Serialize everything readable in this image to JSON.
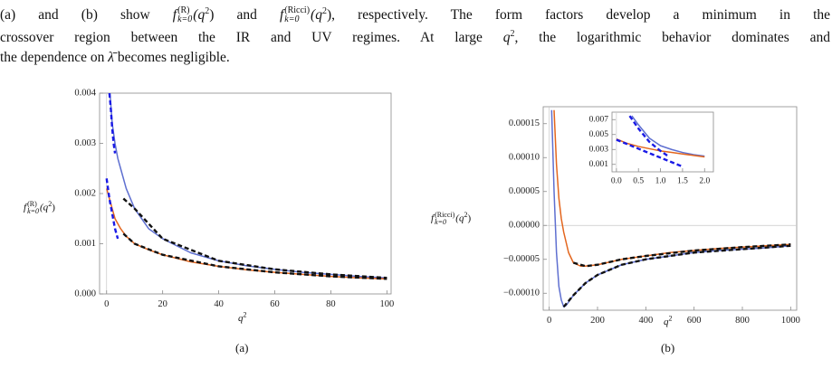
{
  "paragraph": {
    "line1": [
      "(a) and (b) show ",
      "f",
      "(R)",
      "k=0",
      "(q",
      "2",
      ") and ",
      "f",
      "(Ricci)",
      "k=0",
      "(q",
      "2",
      "), respectively. The form factors develop a minimum in the"
    ],
    "line2": [
      "crossover region between the IR and UV regimes. At large ",
      "q",
      "2",
      ", the logarithmic behavior dominates and"
    ],
    "line3": [
      "the dependence on ",
      "λ̄",
      " becomes negligible."
    ]
  },
  "chart_data": [
    {
      "type": "line",
      "caption": "(a)",
      "xlabel": {
        "base": "q",
        "sup": "2"
      },
      "ylabel": {
        "base": "f",
        "sup": "(R)",
        "sub": "k=0",
        "arg": "(q",
        "argsup": "2",
        "close": ")"
      },
      "xlim": [
        -2.5,
        101.5
      ],
      "ylim": [
        0,
        0.004
      ],
      "xticks": [
        0,
        20,
        40,
        60,
        80,
        100
      ],
      "yticks": [
        {
          "value": 0,
          "label": "0.000"
        },
        0.001,
        0.002,
        0.003,
        0.004
      ],
      "series": [
        {
          "color": "#5e6fd0",
          "dashed": false,
          "x": [
            1.2,
            2,
            3,
            4,
            5,
            7,
            10,
            15,
            20,
            30,
            40,
            50,
            60,
            70,
            80,
            90,
            100
          ],
          "values": [
            0.004,
            0.0034,
            0.003,
            0.0027,
            0.0025,
            0.0021,
            0.0017,
            0.0013,
            0.0011,
            0.00082,
            0.00066,
            0.00056,
            0.00049,
            0.00043,
            0.00039,
            0.00035,
            0.00032
          ]
        },
        {
          "color": "#e3661e",
          "dashed": false,
          "x": [
            0,
            1,
            2,
            3,
            5,
            7,
            10,
            15,
            20,
            30,
            40,
            50,
            60,
            70,
            80,
            90,
            100
          ],
          "values": [
            0.0021,
            0.0019,
            0.0017,
            0.0015,
            0.0013,
            0.00115,
            0.001,
            0.00088,
            0.00078,
            0.00064,
            0.00055,
            0.00048,
            0.00043,
            0.00039,
            0.00035,
            0.00032,
            0.0003
          ]
        },
        {
          "color": "#1a1ae6",
          "dashed": true,
          "x": [
            1,
            1.5,
            2,
            2.5,
            3,
            3.5,
            0,
            1,
            2,
            3,
            4
          ],
          "values": [
            0.004,
            0.0037,
            0.0033,
            0.003,
            0.0028,
            null,
            0.0023,
            0.0019,
            0.0016,
            0.0013,
            0.0011
          ]
        },
        {
          "color": "#111111",
          "dashed": true,
          "x": [
            6,
            10,
            20,
            40,
            60,
            80,
            100,
            100,
            6,
            10,
            20,
            40,
            60,
            80,
            100
          ],
          "values": [
            0.0019,
            0.0017,
            0.0011,
            0.00066,
            0.00049,
            0.00039,
            0.00032,
            null,
            0.0012,
            0.001,
            0.00078,
            0.00055,
            0.00043,
            0.00035,
            0.0003
          ]
        }
      ]
    },
    {
      "type": "line",
      "caption": "(b)",
      "xlabel": {
        "base": "q",
        "sup": "2"
      },
      "ylabel": {
        "base": "f",
        "sup": "(Ricci)",
        "sub": "k=0",
        "arg": "(q",
        "argsup": "2",
        "close": ")"
      },
      "xlim": [
        -25,
        1025
      ],
      "ylim": [
        -0.000125,
        0.000175
      ],
      "xticks": [
        0,
        200,
        400,
        600,
        800,
        1000
      ],
      "yticks": [
        {
          "value": -0.0001,
          "label": "−0.00010"
        },
        {
          "value": -5e-05,
          "label": "−0.00005"
        },
        {
          "value": 0,
          "label": "0.00000"
        },
        {
          "value": 5e-05,
          "label": "0.00005"
        },
        {
          "value": 0.0001,
          "label": "0.00010"
        },
        0.00015
      ],
      "series": [
        {
          "color": "#5e6fd0",
          "dashed": false,
          "x": [
            10,
            20,
            30,
            40,
            50,
            60,
            70,
            80,
            100,
            150,
            200,
            300,
            400,
            500,
            600,
            700,
            800,
            900,
            1000
          ],
          "values": [
            0.00017,
            5e-05,
            -4e-05,
            -9e-05,
            -0.00011,
            -0.00012,
            -0.000118,
            -0.000113,
            -0.000103,
            -8.5e-05,
            -7.3e-05,
            -5.8e-05,
            -5e-05,
            -4.5e-05,
            -4e-05,
            -3.7e-05,
            -3.5e-05,
            -3.3e-05,
            -3e-05
          ]
        },
        {
          "color": "#e3661e",
          "dashed": false,
          "x": [
            20,
            30,
            40,
            50,
            60,
            80,
            100,
            130,
            150,
            200,
            300,
            400,
            500,
            600,
            700,
            800,
            900,
            1000
          ],
          "values": [
            0.00017,
            9e-05,
            4e-05,
            1e-05,
            -1e-05,
            -4e-05,
            -5.5e-05,
            -6e-05,
            -6e-05,
            -5.8e-05,
            -5e-05,
            -4.5e-05,
            -4e-05,
            -3.7e-05,
            -3.4e-05,
            -3.2e-05,
            -3e-05,
            -2.8e-05
          ]
        },
        {
          "color": "#111111",
          "dashed": true,
          "x": [
            60,
            100,
            150,
            200,
            300,
            400,
            600,
            800,
            1000,
            1000,
            100,
            150,
            200,
            300,
            400,
            600,
            800,
            1000
          ],
          "values": [
            -0.00012,
            -0.000103,
            -8.5e-05,
            -7.3e-05,
            -5.8e-05,
            -5e-05,
            -4e-05,
            -3.5e-05,
            -3e-05,
            null,
            -5.5e-05,
            -6e-05,
            -5.8e-05,
            -5e-05,
            -4.5e-05,
            -3.7e-05,
            -3.2e-05,
            -2.8e-05
          ]
        }
      ]
    },
    {
      "type": "line",
      "xlim": [
        -0.1,
        2.2
      ],
      "ylim": [
        0,
        0.008
      ],
      "xticks": [
        {
          "value": 0,
          "label": "0.0"
        },
        0.5,
        {
          "value": 1,
          "label": "1.0"
        },
        1.5,
        {
          "value": 2,
          "label": "2.0"
        }
      ],
      "yticks": [
        0.001,
        0.003,
        0.005,
        0.007
      ],
      "series": [
        {
          "color": "#5e6fd0",
          "dashed": false,
          "x": [
            0.35,
            0.5,
            0.75,
            1,
            1.25,
            1.5,
            1.75,
            2
          ],
          "values": [
            0.0075,
            0.0063,
            0.0045,
            0.0035,
            0.003,
            0.0026,
            0.0023,
            0.0021
          ]
        },
        {
          "color": "#e3661e",
          "dashed": false,
          "x": [
            0,
            0.25,
            0.5,
            0.75,
            1,
            1.25,
            1.5,
            1.75,
            2
          ],
          "values": [
            0.0044,
            0.0038,
            0.0034,
            0.0031,
            0.0028,
            0.0026,
            0.0024,
            0.0022,
            0.002
          ]
        },
        {
          "color": "#1a1ae6",
          "dashed": true,
          "x": [
            0.3,
            0.5,
            0.75,
            1,
            1.2,
            1.3,
            0,
            0.25,
            0.5,
            0.75,
            1,
            1.25,
            1.5
          ],
          "values": [
            0.0075,
            0.0058,
            0.004,
            0.0028,
            0.002,
            null,
            0.0043,
            0.0037,
            0.0031,
            0.0025,
            0.0019,
            0.0013,
            0.0007
          ]
        }
      ]
    }
  ]
}
